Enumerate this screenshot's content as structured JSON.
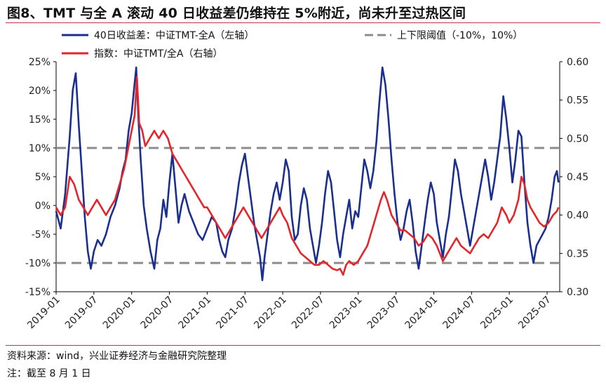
{
  "header": {
    "title": "图8、TMT 与全 A 滚动 40 日收益差仍维持在 5%附近，尚未升至过热区间"
  },
  "footer": {
    "source": "资料来源：wind，兴业证券经济与金融研究院整理",
    "note": "注：截至 8 月 1 日"
  },
  "colors": {
    "spread": "#1b2f8f",
    "index": "#e3262b",
    "band": "#8c8c8c",
    "accent_rule": "#b8324a"
  },
  "chart_data": {
    "type": "line",
    "title": "",
    "x_ticks": [
      "2019-01",
      "2019-07",
      "2020-01",
      "2020-07",
      "2021-01",
      "2021-07",
      "2022-01",
      "2022-07",
      "2023-01",
      "2023-07",
      "2024-01",
      "2024-07",
      "2025-01",
      "2025-07"
    ],
    "x_range": [
      "2019-01",
      "2025-08"
    ],
    "y_left": {
      "min": -15,
      "max": 25,
      "step": 5,
      "unit": "%",
      "ticks": [
        "25%",
        "20%",
        "15%",
        "10%",
        "5%",
        "0%",
        "-5%",
        "-10%",
        "-15%"
      ]
    },
    "y_right": {
      "min": 0.3,
      "max": 0.6,
      "step": 0.05,
      "ticks": [
        "0.60",
        "0.55",
        "0.50",
        "0.45",
        "0.40",
        "0.35",
        "0.30"
      ]
    },
    "legend_placement": "top",
    "series": [
      {
        "name": "40日收益差：中证TMT-全A（左轴）",
        "axis": "left",
        "style": "line",
        "color": "#1b2f8f",
        "points": [
          [
            2019.0,
            -1
          ],
          [
            2019.06,
            -4
          ],
          [
            2019.12,
            2
          ],
          [
            2019.18,
            12
          ],
          [
            2019.22,
            20
          ],
          [
            2019.26,
            23
          ],
          [
            2019.3,
            14
          ],
          [
            2019.34,
            6
          ],
          [
            2019.38,
            -2
          ],
          [
            2019.42,
            -8
          ],
          [
            2019.46,
            -11
          ],
          [
            2019.5,
            -8
          ],
          [
            2019.55,
            -6
          ],
          [
            2019.6,
            -7
          ],
          [
            2019.66,
            -5
          ],
          [
            2019.72,
            -2
          ],
          [
            2019.78,
            0
          ],
          [
            2019.84,
            3
          ],
          [
            2019.88,
            6
          ],
          [
            2019.92,
            8
          ],
          [
            2019.96,
            13
          ],
          [
            2020.0,
            16
          ],
          [
            2020.03,
            20
          ],
          [
            2020.06,
            24
          ],
          [
            2020.09,
            15
          ],
          [
            2020.12,
            8
          ],
          [
            2020.16,
            0
          ],
          [
            2020.2,
            -4
          ],
          [
            2020.25,
            -8
          ],
          [
            2020.3,
            -11
          ],
          [
            2020.34,
            -6
          ],
          [
            2020.38,
            -4
          ],
          [
            2020.42,
            1
          ],
          [
            2020.46,
            -2
          ],
          [
            2020.5,
            4
          ],
          [
            2020.54,
            9
          ],
          [
            2020.58,
            3
          ],
          [
            2020.62,
            -3
          ],
          [
            2020.66,
            0
          ],
          [
            2020.7,
            2
          ],
          [
            2020.76,
            -1
          ],
          [
            2020.82,
            -3
          ],
          [
            2020.88,
            -5
          ],
          [
            2020.94,
            -6
          ],
          [
            2021.0,
            -4
          ],
          [
            2021.06,
            -2
          ],
          [
            2021.12,
            -3
          ],
          [
            2021.16,
            -6
          ],
          [
            2021.2,
            -8
          ],
          [
            2021.24,
            -9
          ],
          [
            2021.28,
            -6
          ],
          [
            2021.33,
            -4
          ],
          [
            2021.38,
            0
          ],
          [
            2021.42,
            4
          ],
          [
            2021.46,
            7
          ],
          [
            2021.5,
            9
          ],
          [
            2021.54,
            5
          ],
          [
            2021.58,
            1
          ],
          [
            2021.62,
            -3
          ],
          [
            2021.66,
            -6
          ],
          [
            2021.7,
            -9
          ],
          [
            2021.73,
            -13
          ],
          [
            2021.76,
            -9
          ],
          [
            2021.8,
            -5
          ],
          [
            2021.84,
            -1
          ],
          [
            2021.88,
            2
          ],
          [
            2021.92,
            4
          ],
          [
            2021.96,
            1
          ],
          [
            2022.0,
            4
          ],
          [
            2022.04,
            8
          ],
          [
            2022.08,
            6
          ],
          [
            2022.12,
            -2
          ],
          [
            2022.16,
            -6
          ],
          [
            2022.2,
            -5
          ],
          [
            2022.24,
            0
          ],
          [
            2022.28,
            3
          ],
          [
            2022.32,
            1
          ],
          [
            2022.36,
            -4
          ],
          [
            2022.4,
            -7
          ],
          [
            2022.44,
            -10
          ],
          [
            2022.48,
            -7
          ],
          [
            2022.52,
            -3
          ],
          [
            2022.56,
            2
          ],
          [
            2022.6,
            6
          ],
          [
            2022.64,
            4
          ],
          [
            2022.68,
            -1
          ],
          [
            2022.72,
            -6
          ],
          [
            2022.76,
            -9
          ],
          [
            2022.8,
            -5
          ],
          [
            2022.84,
            -2
          ],
          [
            2022.88,
            1
          ],
          [
            2022.92,
            -4
          ],
          [
            2022.96,
            -1
          ],
          [
            2023.0,
            -2
          ],
          [
            2023.04,
            3
          ],
          [
            2023.08,
            8
          ],
          [
            2023.12,
            6
          ],
          [
            2023.16,
            3
          ],
          [
            2023.2,
            6
          ],
          [
            2023.24,
            11
          ],
          [
            2023.28,
            18
          ],
          [
            2023.32,
            24
          ],
          [
            2023.36,
            21
          ],
          [
            2023.4,
            15
          ],
          [
            2023.44,
            8
          ],
          [
            2023.48,
            2
          ],
          [
            2023.52,
            -3
          ],
          [
            2023.56,
            -6
          ],
          [
            2023.6,
            -4
          ],
          [
            2023.64,
            -1
          ],
          [
            2023.68,
            1
          ],
          [
            2023.72,
            -3
          ],
          [
            2023.76,
            -8
          ],
          [
            2023.8,
            -11
          ],
          [
            2023.84,
            -7
          ],
          [
            2023.88,
            -3
          ],
          [
            2023.92,
            1
          ],
          [
            2023.96,
            4
          ],
          [
            2024.0,
            2
          ],
          [
            2024.04,
            -3
          ],
          [
            2024.08,
            -6
          ],
          [
            2024.12,
            -9
          ],
          [
            2024.16,
            -5
          ],
          [
            2024.2,
            -2
          ],
          [
            2024.24,
            3
          ],
          [
            2024.28,
            8
          ],
          [
            2024.32,
            6
          ],
          [
            2024.36,
            2
          ],
          [
            2024.4,
            -1
          ],
          [
            2024.44,
            -4
          ],
          [
            2024.48,
            -7
          ],
          [
            2024.52,
            -4
          ],
          [
            2024.56,
            -1
          ],
          [
            2024.6,
            2
          ],
          [
            2024.64,
            5
          ],
          [
            2024.68,
            8
          ],
          [
            2024.72,
            5
          ],
          [
            2024.76,
            1
          ],
          [
            2024.8,
            4
          ],
          [
            2024.84,
            8
          ],
          [
            2024.88,
            12
          ],
          [
            2024.92,
            19
          ],
          [
            2024.96,
            15
          ],
          [
            2025.0,
            10
          ],
          [
            2025.04,
            4
          ],
          [
            2025.08,
            8
          ],
          [
            2025.12,
            13
          ],
          [
            2025.16,
            12
          ],
          [
            2025.2,
            4
          ],
          [
            2025.24,
            -3
          ],
          [
            2025.28,
            -7
          ],
          [
            2025.32,
            -10
          ],
          [
            2025.36,
            -7
          ],
          [
            2025.4,
            -6
          ],
          [
            2025.44,
            -5
          ],
          [
            2025.48,
            -4
          ],
          [
            2025.52,
            -2
          ],
          [
            2025.56,
            1
          ],
          [
            2025.6,
            5
          ],
          [
            2025.63,
            6
          ],
          [
            2025.65,
            4
          ]
        ]
      },
      {
        "name": "指数：中证TMT/全A（右轴）",
        "axis": "right",
        "style": "line",
        "color": "#e3262b",
        "points": [
          [
            2019.0,
            0.41
          ],
          [
            2019.06,
            0.4
          ],
          [
            2019.12,
            0.41
          ],
          [
            2019.18,
            0.45
          ],
          [
            2019.24,
            0.44
          ],
          [
            2019.3,
            0.42
          ],
          [
            2019.36,
            0.41
          ],
          [
            2019.42,
            0.4
          ],
          [
            2019.48,
            0.41
          ],
          [
            2019.54,
            0.42
          ],
          [
            2019.6,
            0.41
          ],
          [
            2019.66,
            0.4
          ],
          [
            2019.72,
            0.41
          ],
          [
            2019.78,
            0.42
          ],
          [
            2019.84,
            0.44
          ],
          [
            2019.9,
            0.46
          ],
          [
            2019.96,
            0.49
          ],
          [
            2020.0,
            0.51
          ],
          [
            2020.04,
            0.53
          ],
          [
            2020.07,
            0.58
          ],
          [
            2020.1,
            0.52
          ],
          [
            2020.14,
            0.51
          ],
          [
            2020.18,
            0.49
          ],
          [
            2020.24,
            0.5
          ],
          [
            2020.3,
            0.51
          ],
          [
            2020.36,
            0.5
          ],
          [
            2020.42,
            0.51
          ],
          [
            2020.48,
            0.5
          ],
          [
            2020.54,
            0.48
          ],
          [
            2020.6,
            0.47
          ],
          [
            2020.66,
            0.46
          ],
          [
            2020.72,
            0.45
          ],
          [
            2020.78,
            0.44
          ],
          [
            2020.84,
            0.43
          ],
          [
            2020.9,
            0.42
          ],
          [
            2020.96,
            0.41
          ],
          [
            2021.0,
            0.41
          ],
          [
            2021.06,
            0.4
          ],
          [
            2021.12,
            0.39
          ],
          [
            2021.18,
            0.38
          ],
          [
            2021.24,
            0.37
          ],
          [
            2021.3,
            0.38
          ],
          [
            2021.36,
            0.39
          ],
          [
            2021.42,
            0.4
          ],
          [
            2021.48,
            0.41
          ],
          [
            2021.54,
            0.4
          ],
          [
            2021.6,
            0.39
          ],
          [
            2021.66,
            0.38
          ],
          [
            2021.72,
            0.37
          ],
          [
            2021.78,
            0.38
          ],
          [
            2021.84,
            0.39
          ],
          [
            2021.9,
            0.4
          ],
          [
            2021.96,
            0.41
          ],
          [
            2022.0,
            0.4
          ],
          [
            2022.06,
            0.39
          ],
          [
            2022.12,
            0.37
          ],
          [
            2022.18,
            0.36
          ],
          [
            2022.24,
            0.35
          ],
          [
            2022.3,
            0.345
          ],
          [
            2022.36,
            0.34
          ],
          [
            2022.42,
            0.335
          ],
          [
            2022.48,
            0.335
          ],
          [
            2022.54,
            0.34
          ],
          [
            2022.6,
            0.335
          ],
          [
            2022.66,
            0.33
          ],
          [
            2022.72,
            0.328
          ],
          [
            2022.76,
            0.33
          ],
          [
            2022.8,
            0.322
          ],
          [
            2022.84,
            0.335
          ],
          [
            2022.88,
            0.34
          ],
          [
            2022.94,
            0.335
          ],
          [
            2023.0,
            0.34
          ],
          [
            2023.06,
            0.35
          ],
          [
            2023.12,
            0.36
          ],
          [
            2023.18,
            0.38
          ],
          [
            2023.24,
            0.4
          ],
          [
            2023.3,
            0.42
          ],
          [
            2023.34,
            0.43
          ],
          [
            2023.38,
            0.42
          ],
          [
            2023.44,
            0.4
          ],
          [
            2023.5,
            0.39
          ],
          [
            2023.56,
            0.38
          ],
          [
            2023.62,
            0.38
          ],
          [
            2023.68,
            0.375
          ],
          [
            2023.74,
            0.37
          ],
          [
            2023.8,
            0.36
          ],
          [
            2023.86,
            0.365
          ],
          [
            2023.92,
            0.375
          ],
          [
            2023.98,
            0.37
          ],
          [
            2024.04,
            0.36
          ],
          [
            2024.08,
            0.35
          ],
          [
            2024.12,
            0.34
          ],
          [
            2024.18,
            0.35
          ],
          [
            2024.24,
            0.36
          ],
          [
            2024.3,
            0.37
          ],
          [
            2024.36,
            0.36
          ],
          [
            2024.42,
            0.355
          ],
          [
            2024.48,
            0.35
          ],
          [
            2024.54,
            0.36
          ],
          [
            2024.6,
            0.37
          ],
          [
            2024.66,
            0.375
          ],
          [
            2024.72,
            0.37
          ],
          [
            2024.78,
            0.38
          ],
          [
            2024.84,
            0.39
          ],
          [
            2024.9,
            0.41
          ],
          [
            2024.96,
            0.4
          ],
          [
            2025.0,
            0.39
          ],
          [
            2025.06,
            0.4
          ],
          [
            2025.12,
            0.42
          ],
          [
            2025.16,
            0.45
          ],
          [
            2025.2,
            0.44
          ],
          [
            2025.24,
            0.42
          ],
          [
            2025.28,
            0.41
          ],
          [
            2025.34,
            0.4
          ],
          [
            2025.4,
            0.39
          ],
          [
            2025.46,
            0.385
          ],
          [
            2025.52,
            0.39
          ],
          [
            2025.58,
            0.4
          ],
          [
            2025.63,
            0.405
          ],
          [
            2025.65,
            0.41
          ]
        ]
      },
      {
        "name": "上下限阈值（-10%，10%）",
        "axis": "left",
        "style": "dashed",
        "color": "#8c8c8c",
        "levels": [
          -10,
          10
        ]
      }
    ]
  }
}
